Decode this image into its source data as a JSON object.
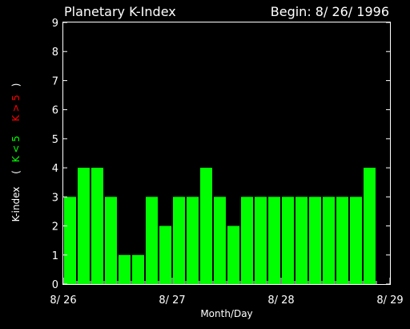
{
  "chart_data": {
    "type": "bar",
    "title": "Planetary K-Index",
    "begin_label": "Begin: 8/ 26/ 1996",
    "xlabel": "Month/Day",
    "ylabel_parts": [
      "K-index",
      "(",
      "K < 5",
      "K > 5",
      ")"
    ],
    "ylim": [
      0,
      9
    ],
    "yticks": [
      "0",
      "1",
      "2",
      "3",
      "4",
      "5",
      "6",
      "7",
      "8",
      "9"
    ],
    "xtick_labels": [
      "8/ 26",
      "8/ 27",
      "8/ 28",
      "8/ 29"
    ],
    "days": 3,
    "values": [
      3,
      4,
      4,
      3,
      1,
      1,
      3,
      2,
      3,
      3,
      4,
      3,
      2,
      3,
      3,
      3,
      3,
      3,
      3,
      3,
      3,
      3,
      4
    ],
    "colors": {
      "background": "#000000",
      "axis": "#ffffff",
      "bar": "#00ff00",
      "low": "#00ff00",
      "high": "#ff0000"
    }
  }
}
